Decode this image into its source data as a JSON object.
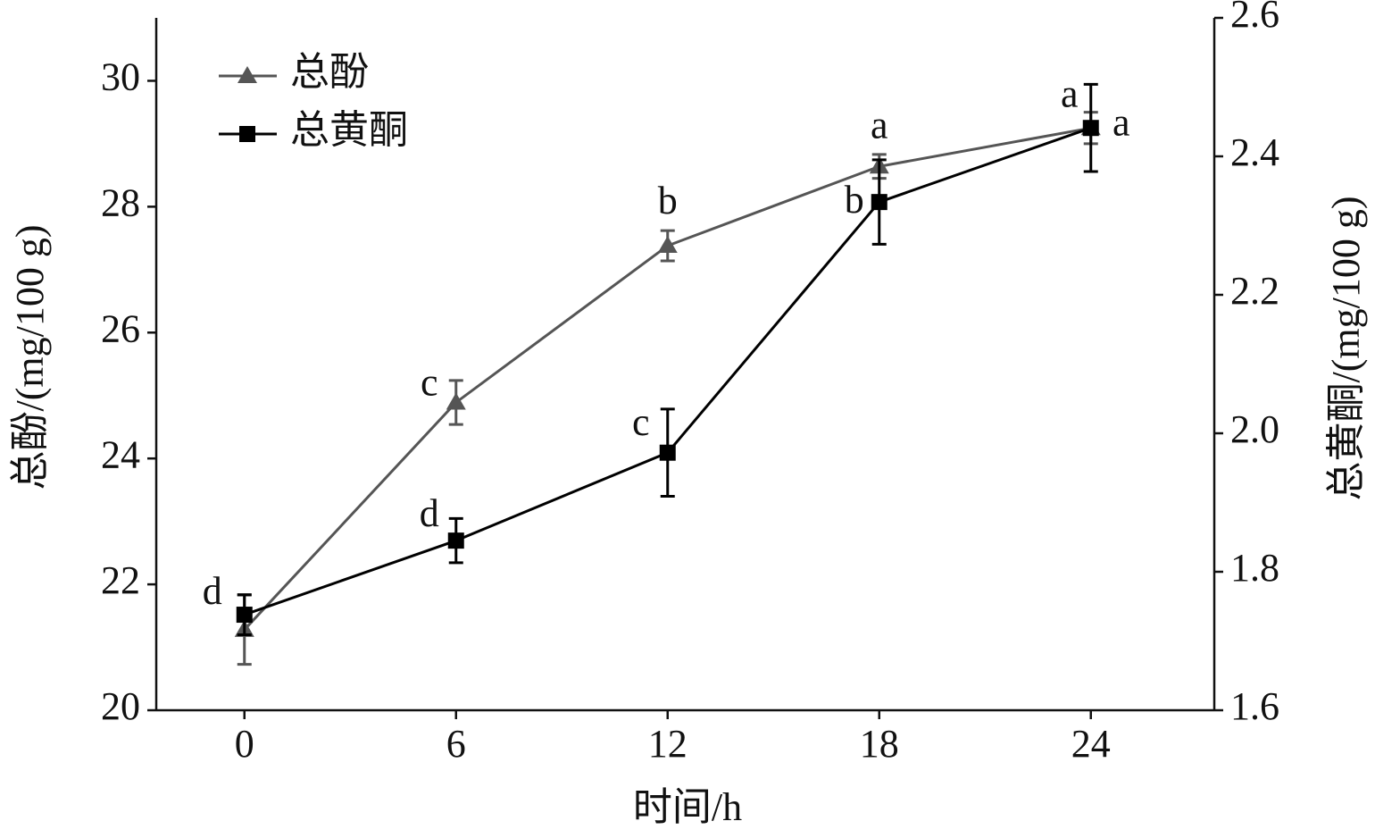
{
  "chart_data": {
    "type": "line",
    "x_label": "时间/h",
    "y_label": "总酚/(mg/100 g)",
    "y2_label": "总黄酮/(mg/100 g)",
    "x": [
      0,
      6,
      12,
      18,
      24
    ],
    "xlim": [
      -2.5,
      27.5
    ],
    "xticks": [
      0,
      6,
      12,
      18,
      24
    ],
    "ylim": [
      20,
      31
    ],
    "yticks": [
      20,
      22,
      24,
      26,
      28,
      30
    ],
    "y2lim": [
      1.6,
      2.6
    ],
    "y2ticks": [
      {
        "value": 1.6,
        "label": "1.6"
      },
      {
        "value": 1.8,
        "label": "1.8"
      },
      {
        "value": 2.0,
        "label": "2.0"
      },
      {
        "value": 2.2,
        "label": "2.2"
      },
      {
        "value": 2.4,
        "label": "2.4"
      },
      {
        "value": 2.6,
        "label": "2.6"
      }
    ],
    "legend": "upper left",
    "series": [
      {
        "name": "总酚",
        "color": "#555555",
        "marker": "triangle",
        "values": [
          21.28,
          24.89,
          27.38,
          28.64,
          29.25
        ],
        "errors": [
          0.55,
          0.35,
          0.24,
          0.19,
          0.25
        ],
        "labels": [
          null,
          "c",
          "b",
          "a",
          "a"
        ]
      },
      {
        "name": "总黄酮",
        "color": "#000000",
        "marker": "square",
        "axis": "y2",
        "values": [
          1.738,
          1.845,
          1.972,
          2.334,
          2.441
        ],
        "errors": [
          0.029,
          0.032,
          0.063,
          0.061,
          0.063
        ],
        "labels": [
          "d",
          "d",
          "c",
          "b",
          "a"
        ]
      }
    ]
  }
}
